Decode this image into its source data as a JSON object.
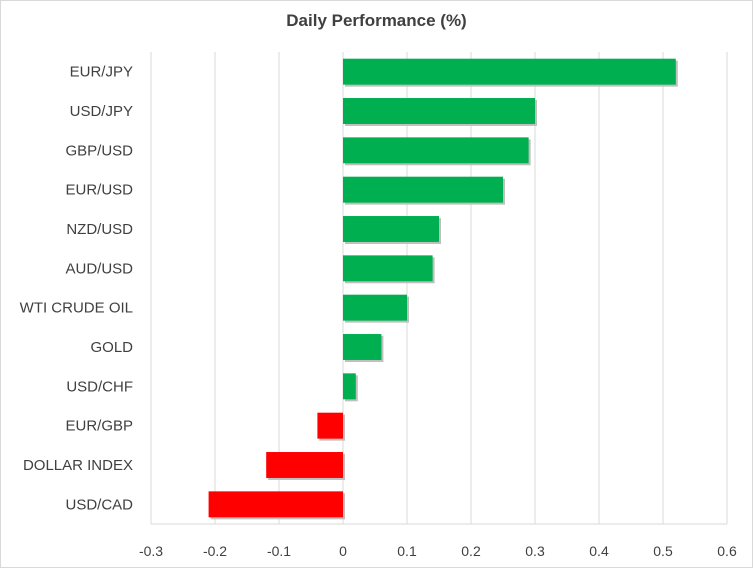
{
  "chart_data": {
    "type": "bar",
    "orientation": "horizontal",
    "title": "Daily Performance (%)",
    "xlabel": "",
    "ylabel": "",
    "categories": [
      "EUR/JPY",
      "USD/JPY",
      "GBP/USD",
      "EUR/USD",
      "NZD/USD",
      "AUD/USD",
      "WTI CRUDE OIL",
      "GOLD",
      "USD/CHF",
      "EUR/GBP",
      "DOLLAR INDEX",
      "USD/CAD"
    ],
    "values": [
      0.52,
      0.3,
      0.29,
      0.25,
      0.15,
      0.14,
      0.1,
      0.06,
      0.02,
      -0.04,
      -0.12,
      -0.21
    ],
    "xlim": [
      -0.3,
      0.6
    ],
    "ticks": [
      "-0.3",
      "-0.2",
      "-0.1",
      "0",
      "0.1",
      "0.2",
      "0.3",
      "0.4",
      "0.5",
      "0.6"
    ],
    "grid": true,
    "legend": "none",
    "colors": {
      "positive": "#00b050",
      "negative": "#ff0000",
      "grid": "#d9d9d9"
    }
  }
}
